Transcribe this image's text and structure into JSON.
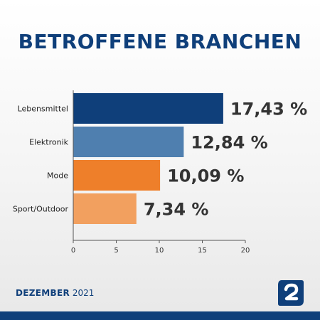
{
  "title": "BETROFFENE BRANCHEN",
  "footer": {
    "month": "DEZEMBER",
    "year": "2021"
  },
  "colors": {
    "title": "#0f3f7a",
    "bar_series": [
      "#0f3f7a",
      "#4f7faf",
      "#ee7f2a",
      "#f2a05f"
    ],
    "value_label": "#333333",
    "axis": "#555555",
    "grid": "#bfbfbf",
    "logo": "#0f3f7a",
    "bottom_bar": "#0f3f7a"
  },
  "logo": {
    "icon": "brand-logo-icon"
  },
  "chart_data": {
    "type": "bar",
    "orientation": "horizontal",
    "title": "BETROFFENE BRANCHEN",
    "categories": [
      "Lebensmittel",
      "Elektronik",
      "Mode",
      "Sport/Outdoor"
    ],
    "values": [
      17.43,
      12.84,
      10.09,
      7.34
    ],
    "value_labels": [
      "17,43 %",
      "12,84 %",
      "10,09 %",
      "7,34 %"
    ],
    "xlim": [
      0,
      20
    ],
    "xticks": [
      0,
      5,
      10,
      15,
      20
    ],
    "xtick_labels": [
      "0",
      "5",
      "10",
      "15",
      "20"
    ],
    "xlabel": "",
    "ylabel": "",
    "grid": false,
    "legend": "none"
  }
}
